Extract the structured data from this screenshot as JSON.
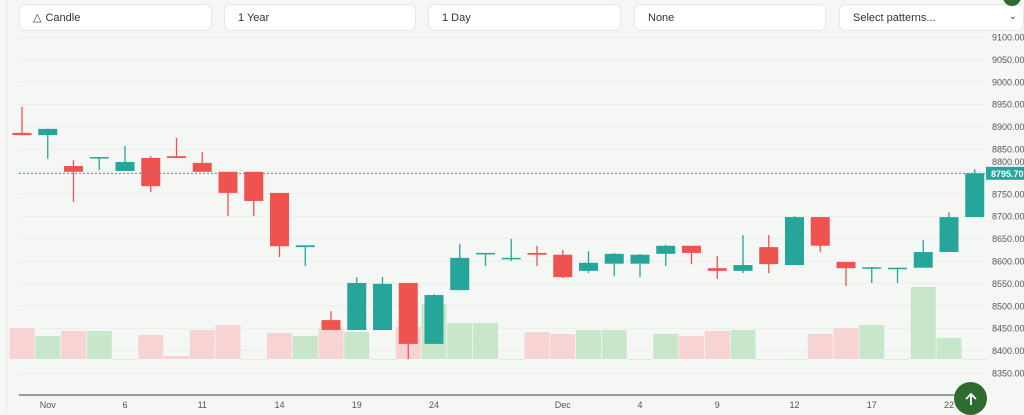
{
  "toolbar": {
    "chart_type": {
      "label": "Candle",
      "icon": "candle-icon"
    },
    "range": {
      "label": "1 Year"
    },
    "interval": {
      "label": "1 Day"
    },
    "indicator": {
      "label": "None"
    },
    "patterns": {
      "placeholder": "Select patterns...",
      "icon": "chevron-down-icon"
    }
  },
  "fab": {
    "icon": "arrow-up-icon"
  },
  "colors": {
    "up": "#26a69a",
    "down": "#ef5350",
    "volume_up": "#c8e6c9",
    "volume_down": "#f8d3d3",
    "fab": "#2e6b30"
  },
  "chart_data": {
    "type": "candlestick",
    "title": "",
    "ylim": [
      8350,
      9100
    ],
    "y_ticks": [
      "9100.00",
      "9050.00",
      "9000.00",
      "8950.00",
      "8900.00",
      "8850.00",
      "8800.00",
      "8750.00",
      "8700.00",
      "8650.00",
      "8600.00",
      "8550.00",
      "8500.00",
      "8450.00",
      "8400.00",
      "8350.00"
    ],
    "last_price": "8795.70",
    "x_ticks": [
      {
        "label": "Nov",
        "index": 1
      },
      {
        "label": "6",
        "index": 4
      },
      {
        "label": "11",
        "index": 7
      },
      {
        "label": "14",
        "index": 10
      },
      {
        "label": "19",
        "index": 13
      },
      {
        "label": "24",
        "index": 16
      },
      {
        "label": "Dec",
        "index": 21
      },
      {
        "label": "4",
        "index": 24
      },
      {
        "label": "9",
        "index": 27
      },
      {
        "label": "12",
        "index": 30
      },
      {
        "label": "17",
        "index": 33
      },
      {
        "label": "22",
        "index": 36
      }
    ],
    "grid": true,
    "candles": [
      [
        8886,
        8944,
        8881,
        8881,
        31
      ],
      [
        8881,
        8895,
        8828,
        8895,
        23
      ],
      [
        8812,
        8825,
        8732,
        8799,
        28
      ],
      [
        8830,
        8832,
        8803,
        8832,
        28
      ],
      [
        8801,
        8857,
        8801,
        8821,
        0
      ],
      [
        8830,
        8834,
        8754,
        8767,
        24
      ],
      [
        8834,
        8875,
        8830,
        8830,
        3
      ],
      [
        8819,
        8843,
        8799,
        8799,
        29
      ],
      [
        8799,
        8799,
        8700,
        8752,
        34
      ],
      [
        8799,
        8799,
        8700,
        8734,
        0
      ],
      [
        8752,
        8752,
        8609,
        8633,
        26
      ],
      [
        8631,
        8635,
        8589,
        8635,
        23
      ],
      [
        8468,
        8488,
        8446,
        8446,
        30
      ],
      [
        8446,
        8564,
        8446,
        8551,
        27
      ],
      [
        8446,
        8564,
        8446,
        8549,
        0
      ],
      [
        8551,
        8551,
        8381,
        8415,
        32
      ],
      [
        8415,
        8526,
        8415,
        8524,
        55
      ],
      [
        8535,
        8638,
        8535,
        8607,
        36
      ],
      [
        8616,
        8618,
        8589,
        8618,
        36
      ],
      [
        8605,
        8649,
        8600,
        8607,
        0
      ],
      [
        8618,
        8634,
        8589,
        8614,
        27
      ],
      [
        8614,
        8625,
        8562,
        8564,
        25
      ],
      [
        8578,
        8622,
        8573,
        8596,
        29
      ],
      [
        8594,
        8618,
        8567,
        8616,
        29
      ],
      [
        8594,
        8616,
        8564,
        8614,
        0
      ],
      [
        8616,
        8636,
        8589,
        8634,
        25
      ],
      [
        8634,
        8634,
        8593,
        8618,
        23
      ],
      [
        8584,
        8611,
        8560,
        8578,
        28
      ],
      [
        8578,
        8658,
        8573,
        8591,
        29
      ],
      [
        8631,
        8658,
        8573,
        8593,
        0
      ],
      [
        8591,
        8700,
        8591,
        8698,
        0
      ],
      [
        8698,
        8698,
        8620,
        8634,
        25
      ],
      [
        8598,
        8598,
        8544,
        8584,
        31
      ],
      [
        8584,
        8586,
        8551,
        8586,
        34
      ],
      [
        8584,
        8585,
        8551,
        8585,
        0
      ],
      [
        8585,
        8647,
        8585,
        8620,
        72
      ],
      [
        8620,
        8709,
        8620,
        8698,
        21
      ],
      [
        8698,
        8805,
        8698,
        8795.7,
        0
      ]
    ],
    "candle_fields": [
      "open",
      "high",
      "low",
      "close",
      "volume_relative"
    ]
  }
}
